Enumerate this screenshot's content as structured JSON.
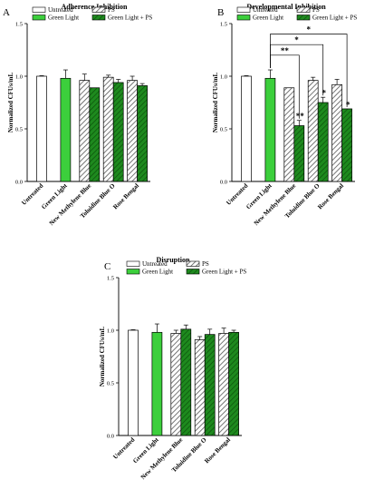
{
  "colors": {
    "untreated": "#ffffff",
    "green_light": "#3ccf3c",
    "ps": "#cfcfcf",
    "green_light_ps": "#1e8a1e",
    "stroke": "#000000"
  },
  "chart_data": [
    {
      "panel": "A",
      "type": "bar",
      "title": "Adherence Inhibition",
      "xlabel": "",
      "ylabel": "Normalized CFUs/mL",
      "ylim": [
        0,
        1.5
      ],
      "yticks": [
        "0.0",
        "0.5",
        "1.0",
        "1.5"
      ],
      "grid": false,
      "legend": {
        "placement": "top",
        "entries": [
          "Untreated",
          "PS",
          "Green Light",
          "Green Light + PS"
        ]
      },
      "categories": [
        "Untreated",
        "Green Light",
        "New Methylene Blue",
        "Toluidine Blue O",
        "Rose Bengal"
      ],
      "series": [
        {
          "name": "Untreated",
          "values": [
            1.0,
            null,
            null,
            null,
            null
          ],
          "errors": [
            0.005,
            null,
            null,
            null,
            null
          ]
        },
        {
          "name": "Green Light",
          "values": [
            null,
            0.98,
            null,
            null,
            null
          ],
          "errors": [
            null,
            0.08,
            null,
            null,
            null
          ]
        },
        {
          "name": "PS",
          "values": [
            null,
            null,
            0.96,
            0.99,
            0.96
          ],
          "errors": [
            null,
            null,
            0.06,
            0.02,
            0.04
          ]
        },
        {
          "name": "Green Light + PS",
          "values": [
            null,
            null,
            0.89,
            0.94,
            0.91
          ],
          "errors": [
            null,
            null,
            0.0,
            0.03,
            0.02
          ]
        }
      ],
      "annotations": []
    },
    {
      "panel": "B",
      "type": "bar",
      "title": "Developmental Inhibition",
      "xlabel": "",
      "ylabel": "Normalized CFUs/mL",
      "ylim": [
        0,
        1.5
      ],
      "yticks": [
        "0.0",
        "0.5",
        "1.0",
        "1.5"
      ],
      "grid": false,
      "legend": {
        "placement": "top",
        "entries": [
          "Untreated",
          "PS",
          "Green Light",
          "Green Light + PS"
        ]
      },
      "categories": [
        "Untreated",
        "Green Light",
        "New Methylene Blue",
        "Toluidine Blue O",
        "Rose Bengal"
      ],
      "series": [
        {
          "name": "Untreated",
          "values": [
            1.0,
            null,
            null,
            null,
            null
          ],
          "errors": [
            0.005,
            null,
            null,
            null,
            null
          ]
        },
        {
          "name": "Green Light",
          "values": [
            null,
            0.98,
            null,
            null,
            null
          ],
          "errors": [
            null,
            0.08,
            null,
            null,
            null
          ]
        },
        {
          "name": "PS",
          "values": [
            null,
            null,
            0.89,
            0.96,
            0.92
          ],
          "errors": [
            null,
            null,
            0.0,
            0.03,
            0.05
          ]
        },
        {
          "name": "Green Light + PS",
          "values": [
            null,
            null,
            0.53,
            0.75,
            0.69
          ],
          "errors": [
            null,
            null,
            0.05,
            0.05,
            0.0
          ]
        }
      ],
      "annotations": [
        {
          "text": "**",
          "kind": "bracket",
          "from": "Green Light",
          "to": "New Methylene Blue",
          "level": 1.2
        },
        {
          "text": "*",
          "kind": "bracket",
          "from": "Green Light",
          "to": "Toluidine Blue O",
          "level": 1.3
        },
        {
          "text": "*",
          "kind": "bracket",
          "from": "Green Light",
          "to": "Rose Bengal",
          "level": 1.4
        },
        {
          "text": "**",
          "kind": "bar",
          "category": "New Methylene Blue",
          "series": "Green Light + PS"
        },
        {
          "text": "*",
          "kind": "bar",
          "category": "Toluidine Blue O",
          "series": "Green Light + PS"
        },
        {
          "text": "*",
          "kind": "bar",
          "category": "Rose Bengal",
          "series": "Green Light + PS"
        }
      ]
    },
    {
      "panel": "C",
      "type": "bar",
      "title": "Disruption",
      "xlabel": "",
      "ylabel": "Normalized CFUs/mL",
      "ylim": [
        0,
        1.5
      ],
      "yticks": [
        "0.0",
        "0.5",
        "1.0",
        "1.5"
      ],
      "grid": false,
      "legend": {
        "placement": "top",
        "entries": [
          "Untreated",
          "PS",
          "Green Light",
          "Green Light + PS"
        ]
      },
      "categories": [
        "Untreated",
        "Green Light",
        "New Methylene Blue",
        "Toluidine Blue O",
        "Rose Bengal"
      ],
      "series": [
        {
          "name": "Untreated",
          "values": [
            1.0,
            null,
            null,
            null,
            null
          ],
          "errors": [
            0.005,
            null,
            null,
            null,
            null
          ]
        },
        {
          "name": "Green Light",
          "values": [
            null,
            0.98,
            null,
            null,
            null
          ],
          "errors": [
            null,
            0.08,
            null,
            null,
            null
          ]
        },
        {
          "name": "PS",
          "values": [
            null,
            null,
            0.97,
            0.91,
            0.97
          ],
          "errors": [
            null,
            null,
            0.03,
            0.03,
            0.05
          ]
        },
        {
          "name": "Green Light + PS",
          "values": [
            null,
            null,
            1.01,
            0.96,
            0.98
          ],
          "errors": [
            null,
            null,
            0.04,
            0.05,
            0.02
          ]
        }
      ],
      "annotations": []
    }
  ]
}
